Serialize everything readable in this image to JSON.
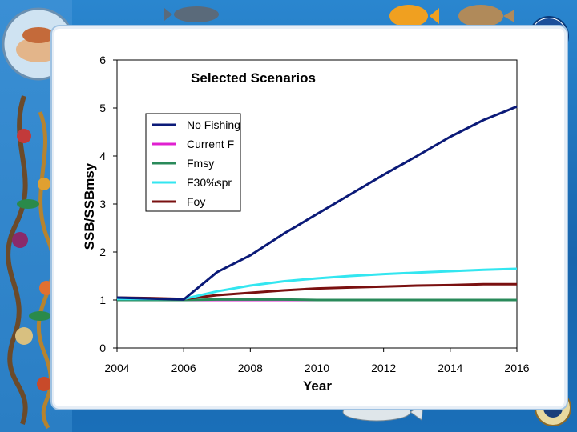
{
  "chart_data": {
    "type": "line",
    "title": "Selected Scenarios",
    "xlabel": "Year",
    "ylabel": "SSB/SSBmsy",
    "xlim": [
      2004,
      2016
    ],
    "ylim": [
      0,
      6
    ],
    "x_ticks": [
      "2004",
      "2006",
      "2008",
      "2010",
      "2012",
      "2014",
      "2016"
    ],
    "y_ticks": [
      "0",
      "1",
      "2",
      "3",
      "4",
      "5",
      "6"
    ],
    "legend_position": "upper-left",
    "series": [
      {
        "name": "No Fishing",
        "color": "#0b1a78",
        "x": [
          2004,
          2005,
          2006,
          2007,
          2008,
          2009,
          2010,
          2011,
          2012,
          2013,
          2014,
          2015,
          2016
        ],
        "values": [
          1.05,
          1.03,
          1.01,
          1.58,
          1.93,
          2.38,
          2.79,
          3.2,
          3.61,
          4.0,
          4.4,
          4.75,
          5.03
        ]
      },
      {
        "name": "Current F",
        "color": "#e020d0",
        "x": [
          2004,
          2005,
          2006,
          2007,
          2008,
          2009,
          2010,
          2011,
          2012,
          2013,
          2014,
          2015,
          2016
        ],
        "values": [
          1.0,
          1.0,
          1.0,
          1.0,
          1.0,
          1.0,
          1.0,
          1.0,
          1.0,
          1.0,
          1.0,
          1.0,
          1.0
        ]
      },
      {
        "name": "Fmsy",
        "color": "#2a8a5a",
        "x": [
          2004,
          2005,
          2006,
          2007,
          2008,
          2009,
          2010,
          2011,
          2012,
          2013,
          2014,
          2015,
          2016
        ],
        "values": [
          1.0,
          1.0,
          1.0,
          1.01,
          1.01,
          1.01,
          1.0,
          1.0,
          1.0,
          1.0,
          1.0,
          1.0,
          1.0
        ]
      },
      {
        "name": "F30%spr",
        "color": "#33e6f0",
        "x": [
          2004,
          2005,
          2006,
          2007,
          2008,
          2009,
          2010,
          2011,
          2012,
          2013,
          2014,
          2015,
          2016
        ],
        "values": [
          1.02,
          1.02,
          1.02,
          1.18,
          1.3,
          1.39,
          1.45,
          1.5,
          1.54,
          1.57,
          1.6,
          1.63,
          1.65
        ]
      },
      {
        "name": "Foy",
        "color": "#7a1010",
        "x": [
          2004,
          2005,
          2006,
          2007,
          2008,
          2009,
          2010,
          2011,
          2012,
          2013,
          2014,
          2015,
          2016
        ],
        "values": [
          1.05,
          1.04,
          1.02,
          1.1,
          1.15,
          1.2,
          1.24,
          1.26,
          1.28,
          1.3,
          1.31,
          1.33,
          1.33
        ]
      }
    ]
  }
}
